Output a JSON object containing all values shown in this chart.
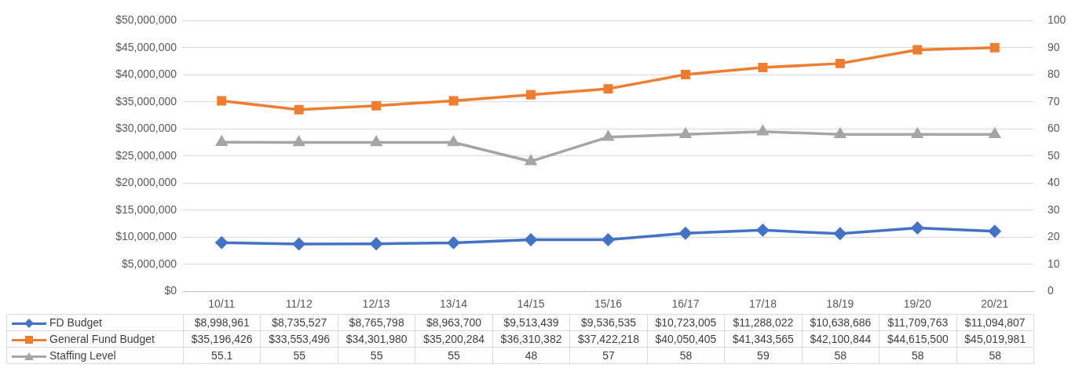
{
  "chart_data": {
    "type": "line",
    "categories": [
      "10/11",
      "11/12",
      "12/13",
      "13/14",
      "14/15",
      "15/16",
      "16/17",
      "17/18",
      "18/19",
      "19/20",
      "20/21"
    ],
    "series": [
      {
        "name": "FD Budget",
        "color": "#4472c4",
        "marker": "diamond",
        "values": [
          8998961,
          8735527,
          8765798,
          8963700,
          9513439,
          9536535,
          10723005,
          11288022,
          10638686,
          11709763,
          11094807
        ],
        "value_labels": [
          "$8,998,961",
          "$8,735,527",
          "$8,765,798",
          "$8,963,700",
          "$9,513,439",
          "$9,536,535",
          "$10,723,005",
          "$11,288,022",
          "$10,638,686",
          "$11,709,763",
          "$11,094,807"
        ]
      },
      {
        "name": "General Fund Budget",
        "color": "#ed7d31",
        "marker": "square",
        "values": [
          35196426,
          33553496,
          34301980,
          35200284,
          36310382,
          37422218,
          40050405,
          41343565,
          42100844,
          44615500,
          45019981
        ],
        "value_labels": [
          "$35,196,426",
          "$33,553,496",
          "$34,301,980",
          "$35,200,284",
          "$36,310,382",
          "$37,422,218",
          "$40,050,405",
          "$41,343,565",
          "$42,100,844",
          "$44,615,500",
          "$45,019,981"
        ]
      },
      {
        "name": "Staffing Level",
        "color": "#a5a5a5",
        "marker": "triangle",
        "axis": "y2",
        "values": [
          55.1,
          55,
          55,
          55,
          48,
          57,
          58,
          59,
          58,
          58,
          58
        ],
        "value_labels": [
          "55.1",
          "55",
          "55",
          "55",
          "48",
          "57",
          "58",
          "59",
          "58",
          "58",
          "58"
        ]
      }
    ],
    "ylim": [
      0,
      50000000
    ],
    "yticks": [
      {
        "value": 0,
        "label": "$0"
      },
      {
        "value": 5000000,
        "label": "$5,000,000"
      },
      {
        "value": 10000000,
        "label": "$10,000,000"
      },
      {
        "value": 15000000,
        "label": "$15,000,000"
      },
      {
        "value": 20000000,
        "label": "$20,000,000"
      },
      {
        "value": 25000000,
        "label": "$25,000,000"
      },
      {
        "value": 30000000,
        "label": "$30,000,000"
      },
      {
        "value": 35000000,
        "label": "$35,000,000"
      },
      {
        "value": 40000000,
        "label": "$40,000,000"
      },
      {
        "value": 45000000,
        "label": "$45,000,000"
      },
      {
        "value": 50000000,
        "label": "$50,000,000"
      }
    ],
    "y2lim": [
      0,
      100
    ],
    "y2ticks": [
      0,
      10,
      20,
      30,
      40,
      50,
      60,
      70,
      80,
      90,
      100
    ],
    "grid": "y",
    "legend": "bottom",
    "line_style": "solid"
  }
}
